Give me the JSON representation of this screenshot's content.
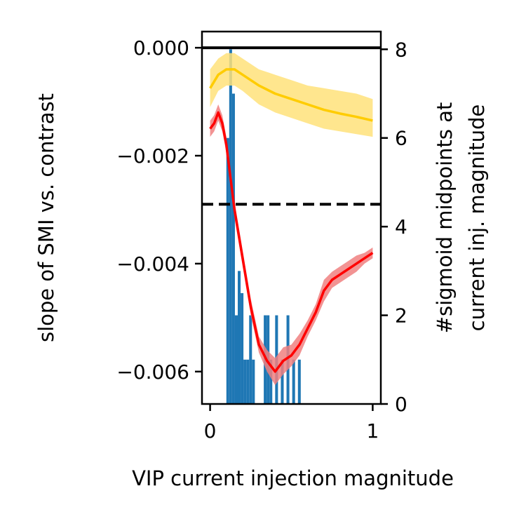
{
  "chart_data": {
    "type": "line",
    "xlabel": "VIP current injection magnitude",
    "ylabel": "slope of SMI vs. contrast",
    "y2label_lines": [
      "#sigmoid midpoints at",
      "current inj. magnitude"
    ],
    "xlim": [
      -0.05,
      1.05
    ],
    "ylim": [
      -0.0066,
      0.0003
    ],
    "y2lim": [
      0,
      8.4
    ],
    "xticks": [
      0,
      1
    ],
    "xtick_labels": [
      "0",
      "1"
    ],
    "yticks": [
      0.0,
      -0.002,
      -0.004,
      -0.006
    ],
    "ytick_labels": [
      "0.000",
      "−0.002",
      "−0.004",
      "−0.006"
    ],
    "y2ticks": [
      0,
      2,
      4,
      6,
      8
    ],
    "y2tick_labels": [
      "0",
      "2",
      "4",
      "6",
      "8"
    ],
    "reference_lines": [
      {
        "y": 0.0,
        "style": "solid",
        "color": "#000000"
      },
      {
        "y": -0.0029,
        "style": "dashed",
        "color": "#000000"
      }
    ],
    "series": [
      {
        "color": "#ffcc00",
        "band_color": "#ffe27a",
        "x": [
          0.0,
          0.05,
          0.1,
          0.15,
          0.2,
          0.3,
          0.4,
          0.5,
          0.6,
          0.7,
          0.8,
          0.9,
          1.0
        ],
        "y": [
          -0.00075,
          -0.0005,
          -0.0004,
          -0.0004,
          -0.0005,
          -0.0007,
          -0.00085,
          -0.00095,
          -0.00105,
          -0.00115,
          -0.00122,
          -0.00128,
          -0.00135
        ],
        "y_low": [
          -0.0011,
          -0.0008,
          -0.0007,
          -0.0007,
          -0.0008,
          -0.00105,
          -0.0012,
          -0.0013,
          -0.0014,
          -0.0015,
          -0.00155,
          -0.0016,
          -0.00165
        ],
        "y_high": [
          -0.0004,
          -0.0002,
          -0.0001,
          -0.0001,
          -0.0002,
          -0.0004,
          -0.0005,
          -0.0006,
          -0.0007,
          -0.00075,
          -0.0008,
          -0.00085,
          -0.00095
        ]
      },
      {
        "color": "#ff0000",
        "band_color": "#f08080",
        "x": [
          0.0,
          0.025,
          0.05,
          0.075,
          0.1,
          0.125,
          0.15,
          0.2,
          0.25,
          0.3,
          0.35,
          0.4,
          0.45,
          0.5,
          0.55,
          0.6,
          0.65,
          0.7,
          0.75,
          0.8,
          0.85,
          0.9,
          0.95,
          1.0
        ],
        "y": [
          -0.0015,
          -0.0014,
          -0.0012,
          -0.0014,
          -0.0018,
          -0.0024,
          -0.003,
          -0.0039,
          -0.0048,
          -0.0055,
          -0.0058,
          -0.006,
          -0.0058,
          -0.0057,
          -0.0055,
          -0.0052,
          -0.0049,
          -0.0045,
          -0.0043,
          -0.0042,
          -0.0041,
          -0.004,
          -0.0039,
          -0.0038
        ],
        "y_low": [
          -0.00165,
          -0.00155,
          -0.00135,
          -0.00155,
          -0.00195,
          -0.00255,
          -0.00315,
          -0.00405,
          -0.00495,
          -0.00565,
          -0.006,
          -0.00625,
          -0.00605,
          -0.0059,
          -0.0057,
          -0.00535,
          -0.00505,
          -0.0047,
          -0.00445,
          -0.00435,
          -0.00425,
          -0.00415,
          -0.004,
          -0.0039
        ],
        "y_high": [
          -0.00135,
          -0.00125,
          -0.00105,
          -0.00125,
          -0.00165,
          -0.00225,
          -0.00285,
          -0.00375,
          -0.00465,
          -0.00535,
          -0.0056,
          -0.00575,
          -0.00555,
          -0.0055,
          -0.0053,
          -0.00505,
          -0.00475,
          -0.0043,
          -0.00415,
          -0.00405,
          -0.00395,
          -0.00385,
          -0.0038,
          -0.0037
        ]
      }
    ],
    "histogram": {
      "color": "#1f77b4",
      "axis": "y2",
      "bin_width": 0.0175,
      "bins": [
        {
          "x": 0.1,
          "count": 6.0
        },
        {
          "x": 0.1175,
          "count": 8.0
        },
        {
          "x": 0.135,
          "count": 7.0
        },
        {
          "x": 0.1525,
          "count": 2.0
        },
        {
          "x": 0.17,
          "count": 3.0
        },
        {
          "x": 0.1875,
          "count": 2.5
        },
        {
          "x": 0.205,
          "count": 1.0
        },
        {
          "x": 0.2225,
          "count": 1.0
        },
        {
          "x": 0.24,
          "count": 2.0
        },
        {
          "x": 0.2575,
          "count": 1.0
        },
        {
          "x": 0.33,
          "count": 2.0
        },
        {
          "x": 0.3475,
          "count": 2.0
        },
        {
          "x": 0.365,
          "count": 1.0
        },
        {
          "x": 0.4,
          "count": 2.0
        },
        {
          "x": 0.435,
          "count": 1.0
        },
        {
          "x": 0.47,
          "count": 2.0
        },
        {
          "x": 0.505,
          "count": 1.0
        },
        {
          "x": 0.54,
          "count": 1.0
        }
      ]
    }
  }
}
